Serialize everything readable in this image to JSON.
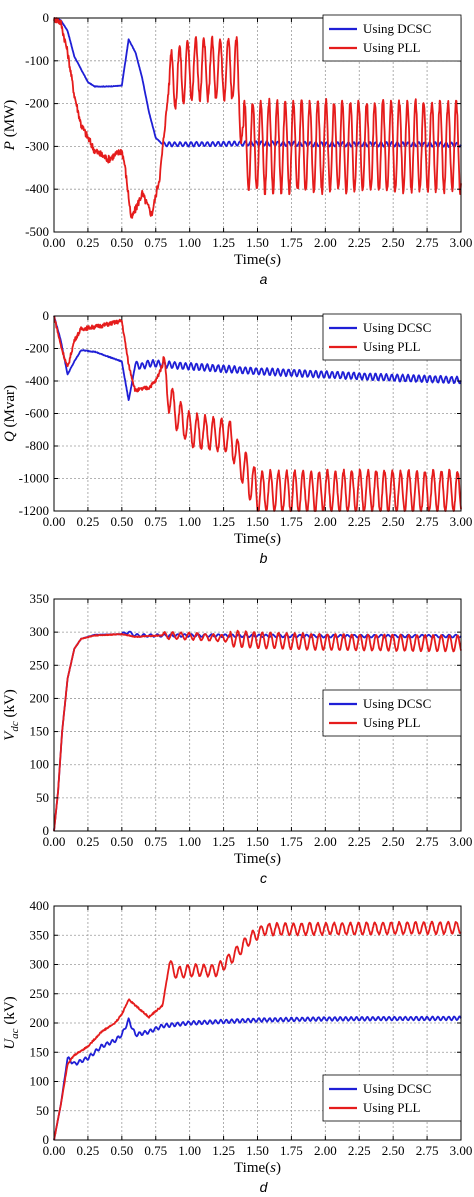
{
  "chart_data": [
    {
      "type": "line",
      "panel_label": "a",
      "xlabel": "Time(s)",
      "xlabel_parts": [
        "Time(",
        "s",
        ")"
      ],
      "ylabel_sym": "P",
      "ylabel_sub": "",
      "ylabel_unit": " (MW)",
      "xlim": [
        0,
        3
      ],
      "ylim": [
        -500,
        0
      ],
      "xticks": [
        "0.00",
        "0.25",
        "0.50",
        "0.75",
        "1.00",
        "1.25",
        "1.50",
        "1.75",
        "2.00",
        "2.25",
        "2.50",
        "2.75",
        "3.00"
      ],
      "yticks": [
        "0",
        "-100",
        "-200",
        "-300",
        "-400",
        "-500"
      ],
      "grid": true,
      "legend_position": "top-right",
      "series": [
        {
          "name": "Using DCSC",
          "color": "#1f1fd6",
          "points": [
            [
              0,
              0
            ],
            [
              0.05,
              -5
            ],
            [
              0.1,
              -30
            ],
            [
              0.15,
              -90
            ],
            [
              0.25,
              -150
            ],
            [
              0.3,
              -160
            ],
            [
              0.4,
              -160
            ],
            [
              0.5,
              -158
            ],
            [
              0.55,
              -50
            ],
            [
              0.6,
              -80
            ],
            [
              0.65,
              -140
            ],
            [
              0.7,
              -220
            ],
            [
              0.75,
              -280
            ],
            [
              0.8,
              -295
            ],
            [
              1.0,
              -295
            ],
            [
              1.5,
              -293
            ],
            [
              2.0,
              -295
            ],
            [
              2.5,
              -295
            ],
            [
              3.0,
              -296
            ]
          ],
          "oscillation": {
            "start": 0.8,
            "amp": 5,
            "period": 0.04
          }
        },
        {
          "name": "Using PLL",
          "color": "#e51c1c",
          "points": [
            [
              0,
              0
            ],
            [
              0.05,
              -10
            ],
            [
              0.1,
              -80
            ],
            [
              0.15,
              -180
            ],
            [
              0.2,
              -250
            ],
            [
              0.3,
              -310
            ],
            [
              0.4,
              -330
            ],
            [
              0.5,
              -310
            ],
            [
              0.52,
              -340
            ],
            [
              0.57,
              -470
            ],
            [
              0.65,
              -410
            ],
            [
              0.72,
              -460
            ],
            [
              0.78,
              -370
            ],
            [
              0.85,
              -150
            ],
            [
              1.0,
              -120
            ],
            [
              1.35,
              -120
            ],
            [
              1.4,
              -300
            ],
            [
              3.0,
              -300
            ]
          ],
          "oscillation": {
            "start": 0.85,
            "amp": 70,
            "period": 0.06,
            "amp2_after": 1.4,
            "amp2": 105
          }
        }
      ]
    },
    {
      "type": "line",
      "panel_label": "b",
      "xlabel": "Time(s)",
      "xlabel_parts": [
        "Time(",
        "s",
        ")"
      ],
      "ylabel_sym": "Q",
      "ylabel_sub": "",
      "ylabel_unit": " (Mvar)",
      "xlim": [
        0,
        3
      ],
      "ylim": [
        -1200,
        0
      ],
      "xticks": [
        "0.00",
        "0.25",
        "0.50",
        "0.75",
        "1.00",
        "1.25",
        "1.50",
        "1.75",
        "2.00",
        "2.25",
        "2.50",
        "2.75",
        "3.00"
      ],
      "yticks": [
        "0",
        "-200",
        "-400",
        "-600",
        "-800",
        "-1000",
        "-1200"
      ],
      "grid": true,
      "legend_position": "top-right",
      "series": [
        {
          "name": "Using DCSC",
          "color": "#1f1fd6",
          "points": [
            [
              0,
              0
            ],
            [
              0.05,
              -150
            ],
            [
              0.1,
              -360
            ],
            [
              0.15,
              -280
            ],
            [
              0.2,
              -210
            ],
            [
              0.3,
              -220
            ],
            [
              0.4,
              -250
            ],
            [
              0.5,
              -280
            ],
            [
              0.55,
              -520
            ],
            [
              0.6,
              -300
            ],
            [
              0.65,
              -310
            ],
            [
              0.7,
              -290
            ],
            [
              1.0,
              -310
            ],
            [
              1.5,
              -340
            ],
            [
              2.0,
              -360
            ],
            [
              2.5,
              -380
            ],
            [
              3.0,
              -395
            ]
          ],
          "oscillation": {
            "start": 0.6,
            "amp": 20,
            "period": 0.04
          }
        },
        {
          "name": "Using PLL",
          "color": "#e51c1c",
          "points": [
            [
              0,
              0
            ],
            [
              0.05,
              -180
            ],
            [
              0.1,
              -320
            ],
            [
              0.15,
              -150
            ],
            [
              0.2,
              -80
            ],
            [
              0.35,
              -60
            ],
            [
              0.45,
              -40
            ],
            [
              0.5,
              -30
            ],
            [
              0.55,
              -300
            ],
            [
              0.6,
              -460
            ],
            [
              0.7,
              -440
            ],
            [
              0.75,
              -400
            ],
            [
              0.8,
              -300
            ],
            [
              0.85,
              -500
            ],
            [
              0.9,
              -600
            ],
            [
              1.0,
              -700
            ],
            [
              1.3,
              -750
            ],
            [
              1.4,
              -950
            ],
            [
              1.5,
              -1080
            ],
            [
              3.0,
              -1080
            ]
          ],
          "oscillation": {
            "start": 0.8,
            "amp": 100,
            "period": 0.06,
            "amp2_after": 1.4,
            "amp2": 125
          }
        }
      ]
    },
    {
      "type": "line",
      "panel_label": "c",
      "xlabel": "Time(s)",
      "xlabel_parts": [
        "Time(",
        "s",
        ")"
      ],
      "ylabel_sym": "V",
      "ylabel_sub": "dc",
      "ylabel_unit": " (kV)",
      "xlim": [
        0,
        3
      ],
      "ylim": [
        0,
        350
      ],
      "xticks": [
        "0.00",
        "0.25",
        "0.50",
        "0.75",
        "1.00",
        "1.25",
        "1.50",
        "1.75",
        "2.00",
        "2.25",
        "2.50",
        "2.75",
        "3.00"
      ],
      "yticks": [
        "0",
        "50",
        "100",
        "150",
        "200",
        "250",
        "300",
        "350"
      ],
      "grid": true,
      "legend_position": "right-middle",
      "series": [
        {
          "name": "Using DCSC",
          "color": "#1f1fd6",
          "points": [
            [
              0,
              0
            ],
            [
              0.03,
              60
            ],
            [
              0.06,
              150
            ],
            [
              0.1,
              230
            ],
            [
              0.15,
              275
            ],
            [
              0.2,
              290
            ],
            [
              0.3,
              296
            ],
            [
              0.5,
              297
            ],
            [
              0.55,
              300
            ],
            [
              0.6,
              295
            ],
            [
              1.0,
              295
            ],
            [
              2.0,
              294
            ],
            [
              3.0,
              294
            ]
          ],
          "oscillation": {
            "start": 0.5,
            "amp": 2,
            "period": 0.05
          }
        },
        {
          "name": "Using PLL",
          "color": "#e51c1c",
          "points": [
            [
              0,
              0
            ],
            [
              0.03,
              60
            ],
            [
              0.06,
              150
            ],
            [
              0.1,
              230
            ],
            [
              0.15,
              275
            ],
            [
              0.2,
              290
            ],
            [
              0.3,
              295
            ],
            [
              0.5,
              297
            ],
            [
              0.6,
              293
            ],
            [
              0.8,
              295
            ],
            [
              1.0,
              294
            ],
            [
              1.5,
              288
            ],
            [
              2.0,
              285
            ],
            [
              3.0,
              283
            ]
          ],
          "oscillation": {
            "start": 0.8,
            "amp": 5,
            "period": 0.06,
            "amp2_after": 1.3,
            "amp2": 12
          }
        }
      ]
    },
    {
      "type": "line",
      "panel_label": "d",
      "xlabel": "Time(s)",
      "xlabel_parts": [
        "Time(",
        "s",
        ")"
      ],
      "ylabel_sym": "U",
      "ylabel_sub": "ac",
      "ylabel_unit": " (kV)",
      "xlim": [
        0,
        3
      ],
      "ylim": [
        0,
        400
      ],
      "xticks": [
        "0.00",
        "0.25",
        "0.50",
        "0.75",
        "1.00",
        "1.25",
        "1.50",
        "1.75",
        "2.00",
        "2.25",
        "2.50",
        "2.75",
        "3.00"
      ],
      "yticks": [
        "0",
        "50",
        "100",
        "150",
        "200",
        "250",
        "300",
        "350",
        "400"
      ],
      "grid": true,
      "legend_position": "bottom-right",
      "series": [
        {
          "name": "Using DCSC",
          "color": "#1f1fd6",
          "points": [
            [
              0,
              0
            ],
            [
              0.05,
              60
            ],
            [
              0.1,
              140
            ],
            [
              0.15,
              130
            ],
            [
              0.25,
              140
            ],
            [
              0.35,
              160
            ],
            [
              0.45,
              170
            ],
            [
              0.5,
              180
            ],
            [
              0.55,
              205
            ],
            [
              0.6,
              180
            ],
            [
              0.7,
              185
            ],
            [
              0.8,
              195
            ],
            [
              1.0,
              200
            ],
            [
              1.5,
              205
            ],
            [
              2.0,
              207
            ],
            [
              3.0,
              208
            ]
          ],
          "oscillation": {
            "start": 0.1,
            "amp": 3,
            "period": 0.04
          }
        },
        {
          "name": "Using PLL",
          "color": "#e51c1c",
          "points": [
            [
              0,
              0
            ],
            [
              0.05,
              60
            ],
            [
              0.1,
              130
            ],
            [
              0.15,
              145
            ],
            [
              0.25,
              160
            ],
            [
              0.35,
              185
            ],
            [
              0.45,
              200
            ],
            [
              0.5,
              215
            ],
            [
              0.55,
              240
            ],
            [
              0.6,
              230
            ],
            [
              0.7,
              210
            ],
            [
              0.8,
              230
            ],
            [
              0.85,
              300
            ],
            [
              0.9,
              285
            ],
            [
              1.0,
              290
            ],
            [
              1.2,
              290
            ],
            [
              1.3,
              310
            ],
            [
              1.45,
              345
            ],
            [
              1.55,
              360
            ],
            [
              3.0,
              363
            ]
          ],
          "oscillation": {
            "start": 0.85,
            "amp": 10,
            "period": 0.06
          }
        }
      ]
    }
  ]
}
